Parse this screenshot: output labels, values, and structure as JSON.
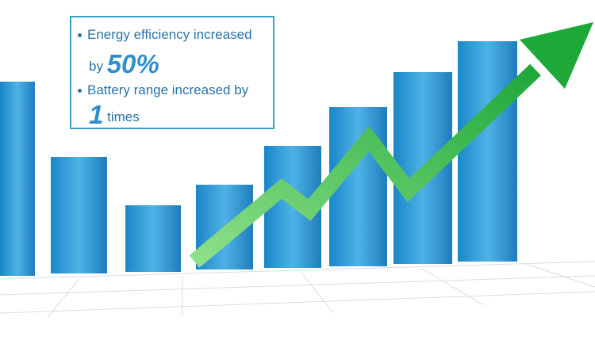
{
  "bullets": [
    {
      "text": "Energy efficiency increased",
      "prefix": "by",
      "highlight": "50%"
    },
    {
      "text": "Battery range increased by",
      "highlight": "1",
      "suffix": "times"
    }
  ]
}
